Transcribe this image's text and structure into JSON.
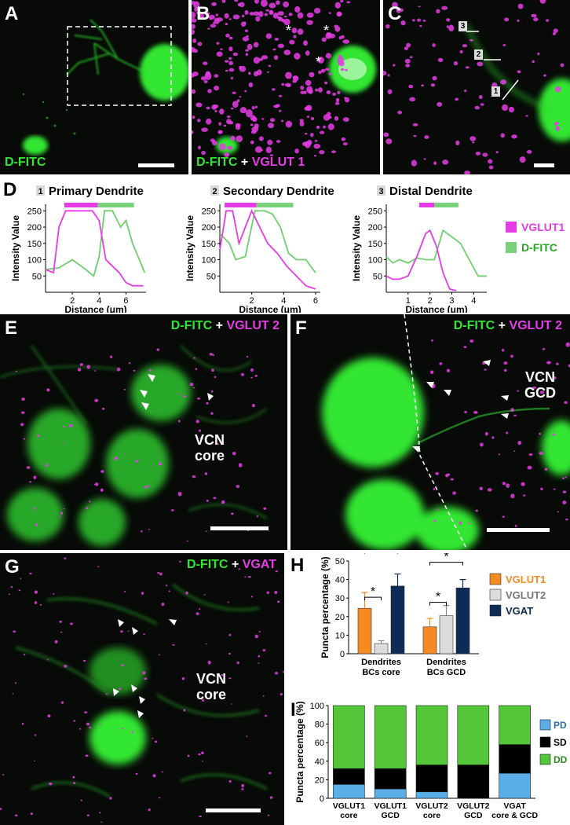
{
  "colors": {
    "green": "#31e631",
    "magenta": "#e63ce6",
    "orange": "#f58a23",
    "gray": "#dcdcdc",
    "navy": "#0d2b55",
    "pd_blue": "#5aaee8",
    "sd_black": "#000000",
    "dd_green": "#53c63a"
  },
  "panelA": {
    "letter": "A",
    "stain_label": "D-FITC"
  },
  "panelB": {
    "letter": "B",
    "stain_green": "D-FITC",
    "plus": "+",
    "stain_magenta": "VGLUT 1"
  },
  "panelC": {
    "letter": "C",
    "marker1": "1",
    "marker2": "2",
    "marker3": "3"
  },
  "panelD": {
    "letter": "D",
    "ylabel": "Intensity Value",
    "xlabel": "Distance (μm)",
    "legend_vglut1": "VGLUT1",
    "legend_dfitc": "D-FITC",
    "plots": [
      {
        "num": "1",
        "title": "Primary Dendrite",
        "xticks": [
          "2",
          "4",
          "6"
        ],
        "yticks": [
          "50",
          "100",
          "150",
          "200",
          "250"
        ]
      },
      {
        "num": "2",
        "title": "Secondary Dendrite",
        "xticks": [
          "2",
          "4",
          "6"
        ],
        "yticks": [
          "50",
          "100",
          "150",
          "200",
          "250"
        ]
      },
      {
        "num": "3",
        "title": "Distal Dendrite",
        "xticks": [
          "1",
          "2",
          "3",
          "4"
        ],
        "yticks": [
          "50",
          "100",
          "150",
          "200",
          "250"
        ]
      }
    ]
  },
  "panelE": {
    "letter": "E",
    "stain_green": "D-FITC",
    "plus": "+",
    "stain_magenta": "VGLUT 2",
    "region1": "VCN",
    "region2": "core"
  },
  "panelF": {
    "letter": "F",
    "stain_green": "D-FITC",
    "plus": "+",
    "stain_magenta": "VGLUT 2",
    "region1": "VCN",
    "region2": "GCD"
  },
  "panelG": {
    "letter": "G",
    "stain_green": "D-FITC",
    "plus": "+",
    "stain_magenta": "VGAT",
    "region1": "VCN",
    "region2": "core"
  },
  "chart_data": [
    {
      "type": "bar",
      "panel": "H",
      "ylabel": "Puncta percentage (%)",
      "ylim": [
        0,
        50
      ],
      "yticks": [
        "0",
        "10",
        "20",
        "30",
        "40",
        "50"
      ],
      "categories": [
        "Dendrites BCs core",
        "Dendrites BCs GCD"
      ],
      "category_lines": [
        [
          "Dendrites",
          "BCs core"
        ],
        [
          "Dendrites",
          "BCs GCD"
        ]
      ],
      "series": [
        {
          "name": "VGLUT1",
          "values": [
            24.5,
            14.5
          ],
          "errors": [
            8.5,
            4.5
          ]
        },
        {
          "name": "VGLUT2",
          "values": [
            5.5,
            20.5
          ],
          "errors": [
            1.5,
            5.5
          ]
        },
        {
          "name": "VGAT",
          "values": [
            36.5,
            35.5
          ],
          "errors": [
            6.5,
            4.5
          ]
        }
      ],
      "sig_marker": "*"
    },
    {
      "type": "bar",
      "stacked": true,
      "panel": "I",
      "ylabel": "Puncta percentage (%)",
      "ylim": [
        0,
        100
      ],
      "yticks": [
        "0",
        "20",
        "40",
        "60",
        "80",
        "100"
      ],
      "categories": [
        "VGLUT1 core",
        "VGLUT1 GCD",
        "VGLUT2 core",
        "VGLUT2 GCD",
        "VGAT core & GCD"
      ],
      "category_lines": [
        [
          "VGLUT1",
          "core"
        ],
        [
          "VGLUT1",
          "GCD"
        ],
        [
          "VGLUT2",
          "core"
        ],
        [
          "VGLUT2",
          "GCD"
        ],
        [
          "VGAT",
          "core & GCD"
        ]
      ],
      "series": [
        {
          "name": "PD",
          "values": [
            15,
            10,
            7,
            0,
            27
          ]
        },
        {
          "name": "SD",
          "values": [
            17,
            22,
            29,
            36,
            31
          ]
        },
        {
          "name": "DD",
          "values": [
            68,
            68,
            64,
            64,
            42
          ]
        }
      ]
    }
  ]
}
